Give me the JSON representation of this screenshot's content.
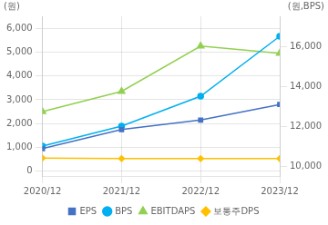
{
  "chart_data": {
    "type": "line",
    "categories": [
      "2020/12",
      "2021/12",
      "2022/12",
      "2023/12"
    ],
    "ylabel": "(원)",
    "y2label": "(원,BPS)",
    "series": [
      {
        "name": "EPS",
        "color": "#4472c4",
        "marker": "square",
        "values": [
          950,
          1750,
          2150,
          2800
        ]
      },
      {
        "name": "BPS",
        "color": "#00b0f0",
        "marker": "circle",
        "axis": "y2",
        "values": [
          11000,
          12000,
          13500,
          16500
        ]
      },
      {
        "name": "EBITDAPS",
        "color": "#92d050",
        "marker": "triangle",
        "values": [
          2500,
          3350,
          5250,
          4950
        ]
      },
      {
        "name": "보통주DPS",
        "color": "#ffc000",
        "marker": "diamond",
        "values": [
          550,
          530,
          530,
          530
        ]
      }
    ],
    "ylim": [
      -200,
      6500
    ],
    "yticks": [
      0,
      {
        "value": 1000,
        "label": "1,000"
      },
      {
        "value": 2000,
        "label": "2,000"
      },
      {
        "value": 3000,
        "label": "3,000"
      },
      {
        "value": 4000,
        "label": "4,000"
      },
      {
        "value": 5000,
        "label": "5,000"
      },
      {
        "value": 6000,
        "label": "6,000"
      }
    ],
    "y2lim": [
      9500,
      17500
    ],
    "y2ticks": [
      {
        "value": 10000,
        "label": "10,000"
      },
      {
        "value": 12000,
        "label": "12,000"
      },
      {
        "value": 14000,
        "label": "14,000"
      },
      {
        "value": 16000,
        "label": "16,000"
      }
    ],
    "grid": true,
    "legend": "bottom"
  }
}
